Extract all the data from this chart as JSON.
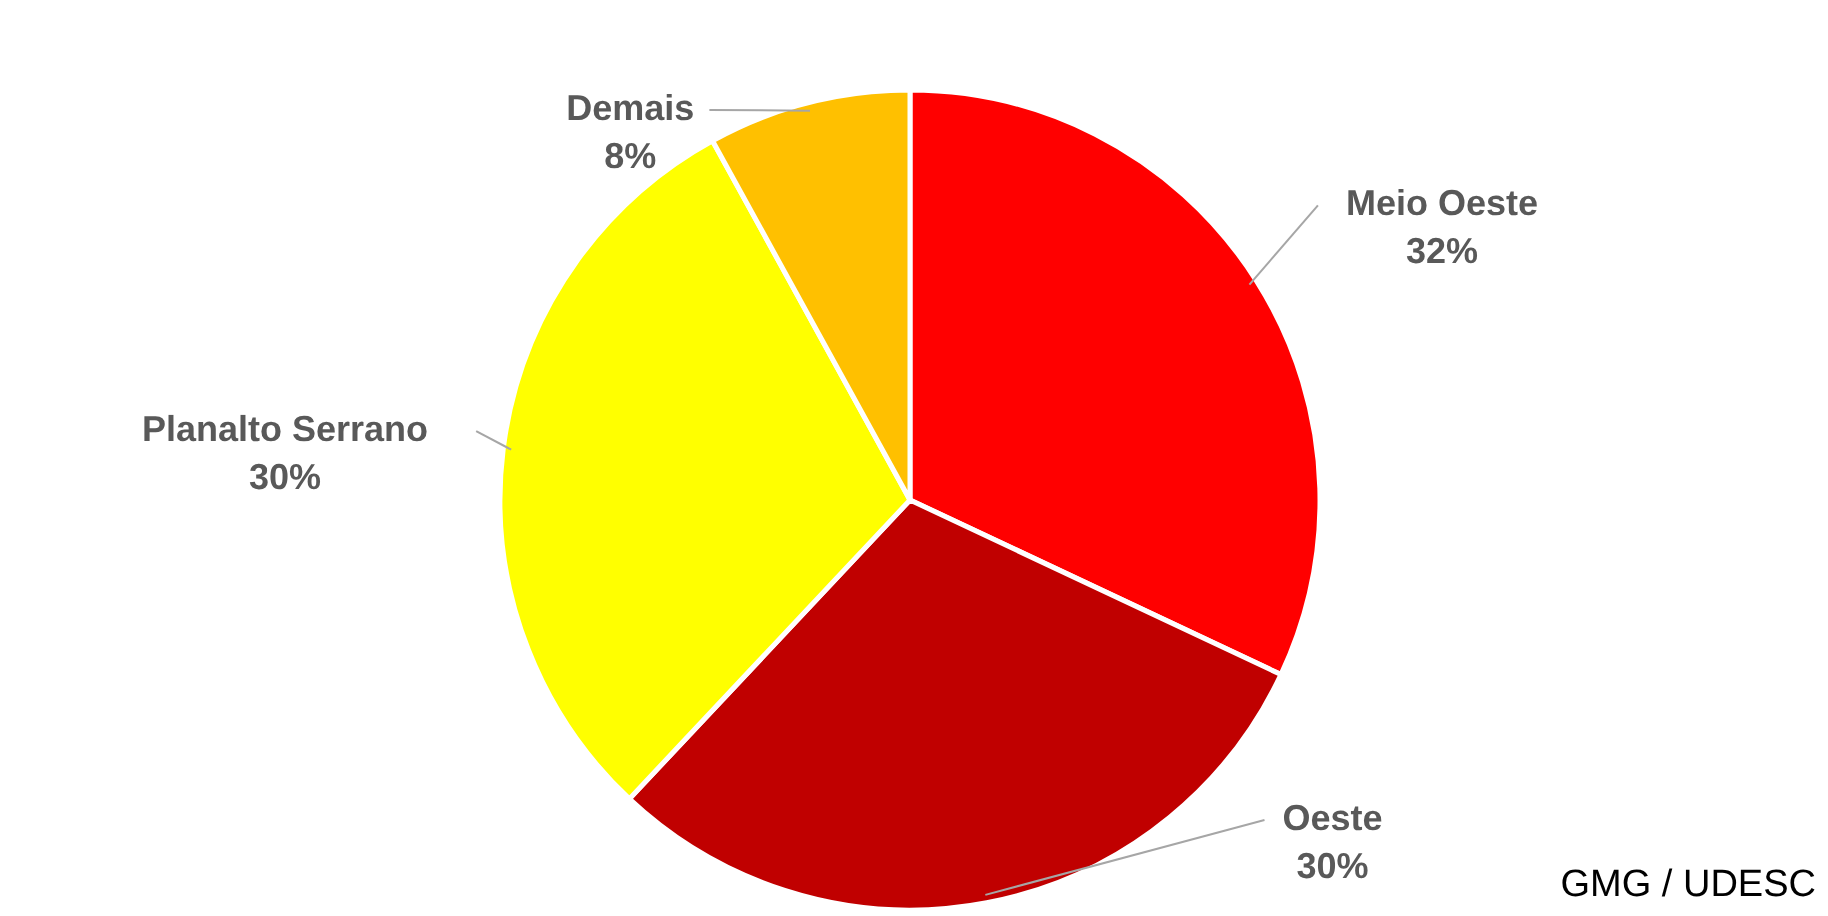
{
  "chart_data": {
    "type": "pie",
    "categories": [
      "Meio Oeste",
      "Oeste",
      "Planalto Serrano",
      "Demais"
    ],
    "values": [
      32,
      30,
      30,
      8
    ],
    "colors": [
      "#ff0000",
      "#c00000",
      "#ffff00",
      "#ffc000"
    ],
    "value_labels": [
      "32%",
      "30%",
      "30%",
      "8%"
    ],
    "annotations": [
      "GMG / UDESC"
    ]
  }
}
